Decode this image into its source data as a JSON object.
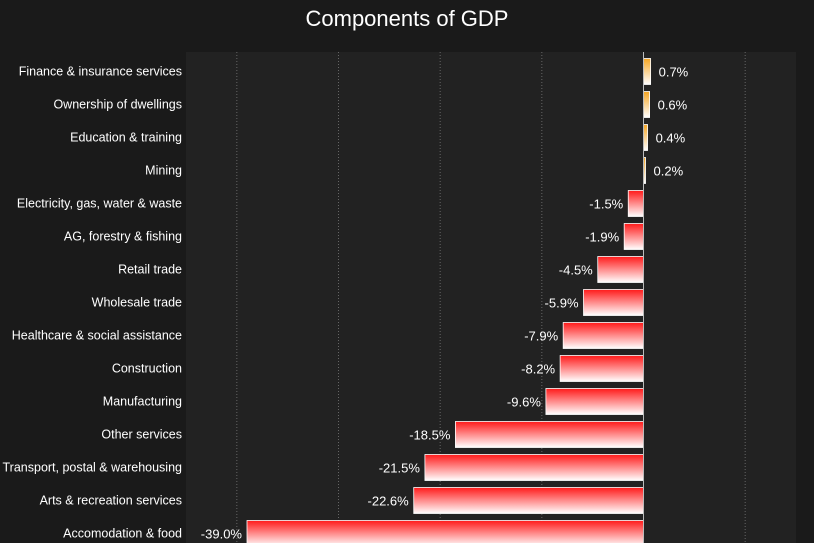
{
  "chart_data": {
    "type": "bar",
    "orientation": "horizontal",
    "title": "Components of GDP",
    "xlabel": "",
    "ylabel": "",
    "xlim": [
      -45,
      15
    ],
    "grid": true,
    "value_suffix": "%",
    "categories": [
      "Finance & insurance services",
      "Ownership of dwellings",
      "Education & training",
      "Mining",
      "Electricity, gas, water & waste",
      "AG, forestry & fishing",
      "Retail trade",
      "Wholesale trade",
      "Healthcare & social assistance",
      "Construction",
      "Manufacturing",
      "Other services",
      "Transport, postal & warehousing",
      "Arts & recreation services",
      "Accomodation & food"
    ],
    "values": [
      0.7,
      0.6,
      0.4,
      0.2,
      -1.5,
      -1.9,
      -4.5,
      -5.9,
      -7.9,
      -8.2,
      -9.6,
      -18.5,
      -21.5,
      -22.6,
      -39.0
    ],
    "colors": {
      "background": "#1a1a1a",
      "plot_background": "#222222",
      "positive_bar": "#f5a623",
      "negative_bar": "#ff1a1a",
      "grid": "#666666"
    }
  }
}
